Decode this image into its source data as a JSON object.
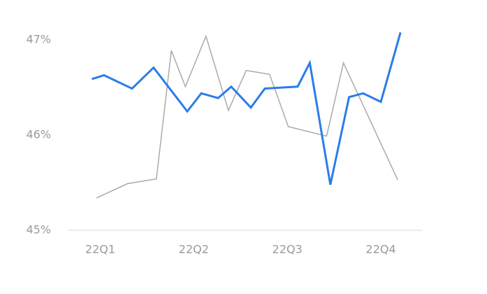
{
  "chart_data": {
    "type": "line",
    "xlim": [
      0.66,
      4.44
    ],
    "xticks": [
      {
        "value": 1,
        "label": "22Q1"
      },
      {
        "value": 2,
        "label": "22Q2"
      },
      {
        "value": 3,
        "label": "22Q3"
      },
      {
        "value": 4,
        "label": "22Q4"
      }
    ],
    "ylim": [
      45,
      47.2
    ],
    "yticks": [
      {
        "value": 45,
        "label": "45%"
      },
      {
        "value": 46,
        "label": "46%"
      },
      {
        "value": 47,
        "label": "47%"
      }
    ],
    "grid": false,
    "series": [
      {
        "color": "#aaaaaa",
        "line_width": 1.5,
        "x": [
          0.96,
          1.29,
          1.6,
          1.76,
          1.91,
          2.13,
          2.37,
          2.56,
          2.81,
          3.01,
          3.42,
          3.6,
          4.18
        ],
        "values": [
          45.34,
          45.49,
          45.54,
          46.89,
          46.51,
          47.04,
          46.26,
          46.68,
          46.64,
          46.09,
          45.99,
          46.76,
          45.53
        ]
      },
      {
        "color": "#2b7de9",
        "line_width": 3,
        "x": [
          0.91,
          1.04,
          1.34,
          1.57,
          1.93,
          2.08,
          2.26,
          2.4,
          2.61,
          2.76,
          3.11,
          3.24,
          3.46,
          3.66,
          3.81,
          4.0,
          4.21
        ],
        "values": [
          46.59,
          46.63,
          46.49,
          46.71,
          46.25,
          46.44,
          46.39,
          46.51,
          46.29,
          46.49,
          46.51,
          46.76,
          45.48,
          46.4,
          46.44,
          46.35,
          47.08
        ]
      }
    ]
  }
}
